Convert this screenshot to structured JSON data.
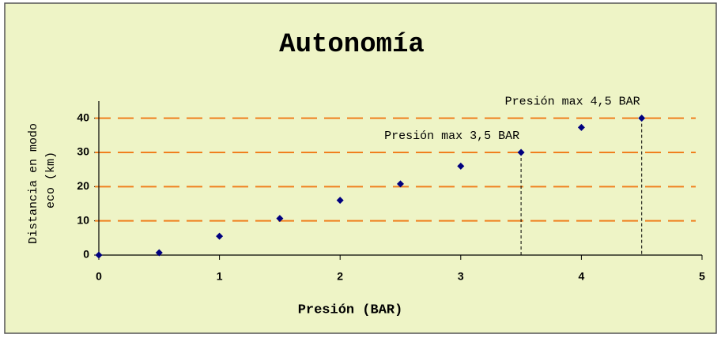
{
  "chart_data": {
    "type": "scatter",
    "title": "Autonomía",
    "xlabel": "Presión  (BAR)",
    "ylabel": [
      "Distancia en modo",
      "eco (km)"
    ],
    "x": [
      0,
      0.5,
      1,
      1.5,
      2,
      2.5,
      3,
      3.5,
      4,
      4.5
    ],
    "series": [
      {
        "color": "#00007f",
        "values": [
          0,
          0.7,
          5.5,
          10.7,
          16,
          20.8,
          26,
          30,
          37.3,
          40
        ]
      }
    ],
    "xlim": [
      0,
      5
    ],
    "xticks": [
      0,
      1,
      2,
      3,
      4,
      5
    ],
    "ylim": [
      0,
      45
    ],
    "yticks": [
      0,
      10,
      20,
      30,
      40
    ],
    "grid": true,
    "grid_color": "#f07f1e",
    "annotations": [
      {
        "text": "Presión max 3,5 BAR",
        "x": 3.5,
        "y": 30
      },
      {
        "text": "Presión max 4,5 BAR",
        "x": 4.5,
        "y": 40
      }
    ]
  }
}
